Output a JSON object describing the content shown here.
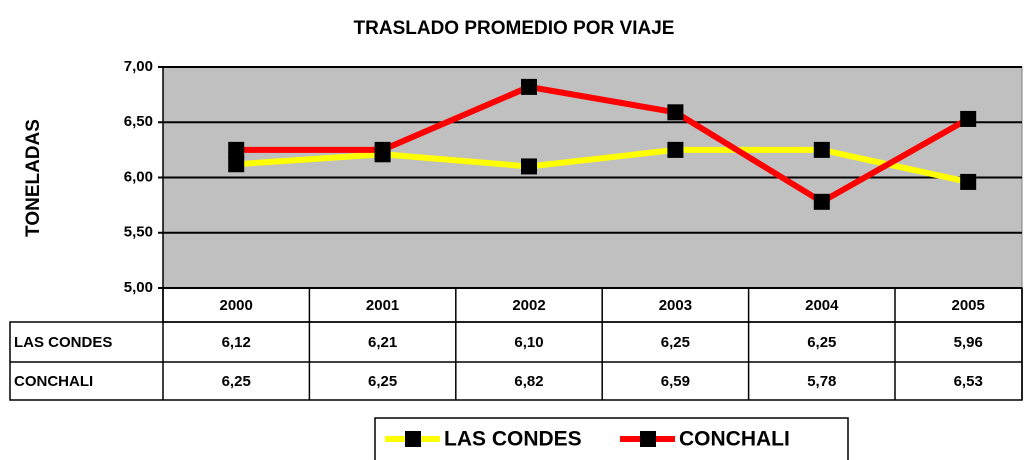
{
  "chart_data": {
    "type": "line",
    "title": "TRASLADO PROMEDIO POR VIAJE",
    "y_label": "TONELADAS",
    "categories": [
      "2000",
      "2001",
      "2002",
      "2003",
      "2004",
      "2005"
    ],
    "series": [
      {
        "name": "LAS CONDES",
        "color": "#ffff00",
        "values": [
          6.12,
          6.21,
          6.1,
          6.25,
          6.25,
          5.96
        ],
        "value_labels": [
          "6,12",
          "6,21",
          "6,10",
          "6,25",
          "6,25",
          "5,96"
        ]
      },
      {
        "name": "CONCHALI",
        "color": "#ff0000",
        "values": [
          6.25,
          6.25,
          6.82,
          6.59,
          5.78,
          6.53
        ],
        "value_labels": [
          "6,25",
          "6,25",
          "6,82",
          "6,59",
          "5,78",
          "6,53"
        ]
      }
    ],
    "ylim": [
      5,
      7
    ],
    "yticks": [
      {
        "value": 5,
        "label": "5,00"
      },
      {
        "value": 5.5,
        "label": "5,50"
      },
      {
        "value": 6,
        "label": "6,00"
      },
      {
        "value": 6.5,
        "label": "6,50"
      },
      {
        "value": 7,
        "label": "7,00"
      }
    ],
    "grid": true,
    "plot_background": "#c0c0c0",
    "marker_color": "#000000",
    "legend": "bottom",
    "data_table": true
  }
}
